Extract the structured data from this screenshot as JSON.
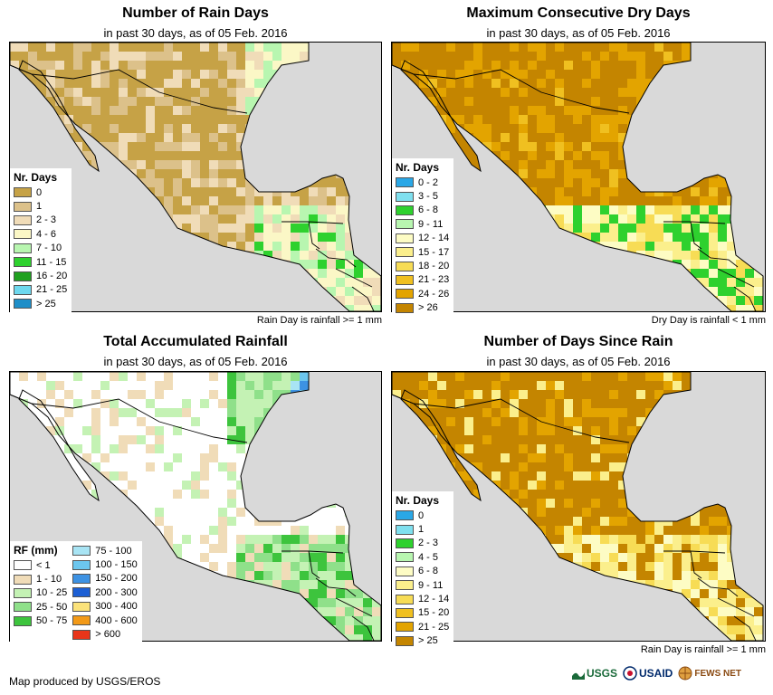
{
  "colors": {
    "land_outline": "#000000",
    "ocean": "#d9d9d9",
    "gulf": "#d9d9d9"
  },
  "panels": [
    {
      "title": "Number of Rain Days",
      "subtitle": "in past 30 days, as of 05 Feb. 2016",
      "note": "Rain Day is rainfall >= 1 mm",
      "legend": {
        "title": "Nr. Days",
        "items": [
          {
            "label": "0",
            "color": "#c6a246"
          },
          {
            "label": "1",
            "color": "#dcc18a"
          },
          {
            "label": "2 - 3",
            "color": "#f0dcb8"
          },
          {
            "label": "4 - 6",
            "color": "#fbf7c6"
          },
          {
            "label": "7 - 10",
            "color": "#b8f6b0"
          },
          {
            "label": "11 - 15",
            "color": "#2ed12e"
          },
          {
            "label": "16 - 20",
            "color": "#1fa01f"
          },
          {
            "label": "21 - 25",
            "color": "#6ed8ee"
          },
          {
            "label": "> 25",
            "color": "#1e8ec8"
          }
        ]
      }
    },
    {
      "title": "Maximum Consecutive Dry Days",
      "subtitle": "in past 30 days, as of 05 Feb. 2016",
      "note": "Dry Day is rainfall < 1 mm",
      "legend": {
        "title": "Nr. Days",
        "items": [
          {
            "label": "0 - 2",
            "color": "#2aa7e6"
          },
          {
            "label": "3 - 5",
            "color": "#7fe0ef"
          },
          {
            "label": "6 - 8",
            "color": "#2ed12e"
          },
          {
            "label": "9 - 11",
            "color": "#b8f6b0"
          },
          {
            "label": "12 - 14",
            "color": "#fdfcc4"
          },
          {
            "label": "15 - 17",
            "color": "#fbef8c"
          },
          {
            "label": "18 - 20",
            "color": "#f7dc55"
          },
          {
            "label": "21 - 23",
            "color": "#f0c020"
          },
          {
            "label": "24 - 26",
            "color": "#e3a400"
          },
          {
            "label": "> 26",
            "color": "#c48500"
          }
        ]
      }
    },
    {
      "title": "Total Accumulated Rainfall",
      "subtitle": "in past 30 days, as of 05 Feb. 2016",
      "note": "",
      "legend": {
        "title": "RF (mm)",
        "items": [
          {
            "label": "< 1",
            "color": "#ffffff"
          },
          {
            "label": "1 - 10",
            "color": "#f0dcb8"
          },
          {
            "label": "10 - 25",
            "color": "#c4f2b4"
          },
          {
            "label": "25 - 50",
            "color": "#8fe08a"
          },
          {
            "label": "50 - 75",
            "color": "#3dc43d"
          }
        ],
        "items2": [
          {
            "label": "75 - 100",
            "color": "#a8e4f4"
          },
          {
            "label": "100 - 150",
            "color": "#6cc6ee"
          },
          {
            "label": "150 - 200",
            "color": "#3d92e3"
          },
          {
            "label": "200 - 300",
            "color": "#1c5fd4"
          },
          {
            "label": "300 - 400",
            "color": "#fbe27a"
          },
          {
            "label": "400 - 600",
            "color": "#f39a18"
          },
          {
            "label": "> 600",
            "color": "#e8351a"
          }
        ]
      }
    },
    {
      "title": "Number of Days Since Rain",
      "subtitle": "in past 30 days, as of 05 Feb. 2016",
      "note": "Rain Day is rainfall >= 1 mm",
      "legend": {
        "title": "Nr. Days",
        "items": [
          {
            "label": "0",
            "color": "#2aa7e6"
          },
          {
            "label": "1",
            "color": "#7fe0ef"
          },
          {
            "label": "2 - 3",
            "color": "#2ed12e"
          },
          {
            "label": "4 - 5",
            "color": "#b8f6b0"
          },
          {
            "label": "6 - 8",
            "color": "#fdfcc4"
          },
          {
            "label": "9 - 11",
            "color": "#fbef8c"
          },
          {
            "label": "12 - 14",
            "color": "#f7dc55"
          },
          {
            "label": "15 - 20",
            "color": "#f0c020"
          },
          {
            "label": "21 - 25",
            "color": "#e3a400"
          },
          {
            "label": "> 25",
            "color": "#c48500"
          }
        ]
      }
    }
  ],
  "footer": "Map produced by USGS/EROS",
  "logos": [
    "USGS",
    "USAID",
    "FEWS NET"
  ]
}
